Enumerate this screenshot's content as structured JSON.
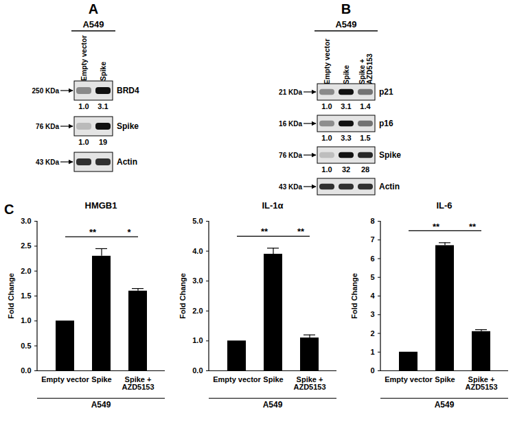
{
  "blots": [
    {
      "label": "A",
      "group": "A549",
      "lanes": [
        "Empty vector",
        "Spike"
      ],
      "rows": [
        {
          "size": "250 KDa",
          "protein": "BRD4",
          "quant": [
            "1.0",
            "3.1"
          ]
        },
        {
          "size": "76 KDa",
          "protein": "Spike",
          "quant": [
            "1.0",
            "19"
          ]
        },
        {
          "size": "43 KDa",
          "protein": "Actin"
        }
      ]
    },
    {
      "label": "B",
      "group": "A549",
      "lanes": [
        "Empty vector",
        "Spike",
        "Spike + AZD5153"
      ],
      "rows": [
        {
          "size": "21 KDa",
          "protein": "p21",
          "quant": [
            "1.0",
            "3.1",
            "1.4"
          ]
        },
        {
          "size": "16 KDa",
          "protein": "p16",
          "quant": [
            "1.0",
            "3.3",
            "1.5"
          ]
        },
        {
          "size": "76 KDa",
          "protein": "Spike",
          "quant": [
            "1.0",
            "32",
            "28"
          ]
        },
        {
          "size": "43 KDa",
          "protein": "Actin"
        }
      ]
    }
  ],
  "panel_label": "C",
  "chart_data": [
    {
      "type": "bar",
      "title": "HMGB1",
      "ylabel": "Fold Change",
      "xlabel": "A549",
      "categories": [
        "Empty vector",
        "Spike",
        "Spike + AZD5153"
      ],
      "values": [
        1,
        2.3,
        1.6
      ],
      "errors": [
        null,
        0.15,
        0.05
      ],
      "color": "#000000",
      "ylim": [
        0,
        3
      ],
      "yticks": [
        0,
        0.5,
        1,
        1.5,
        2,
        2.5,
        3
      ],
      "annotations": [
        {
          "between": [
            "Empty vector",
            "Spike"
          ],
          "text": "**"
        },
        {
          "between": [
            "Spike",
            "Spike + AZD5153"
          ],
          "text": "*"
        }
      ]
    },
    {
      "type": "bar",
      "title": "IL-1α",
      "ylabel": "Fold Change",
      "xlabel": "A549",
      "categories": [
        "Empty vector",
        "Spike",
        "Spike + AZD5153"
      ],
      "values": [
        1,
        3.9,
        1.1
      ],
      "errors": [
        null,
        0.2,
        0.1
      ],
      "color": "#000000",
      "ylim": [
        0,
        5
      ],
      "yticks": [
        0,
        1,
        2,
        3,
        4,
        5
      ],
      "annotations": [
        {
          "between": [
            "Empty vector",
            "Spike"
          ],
          "text": "**"
        },
        {
          "between": [
            "Spike",
            "Spike + AZD5153"
          ],
          "text": "**"
        }
      ]
    },
    {
      "type": "bar",
      "title": "IL-6",
      "ylabel": "Fold Change",
      "xlabel": "A549",
      "categories": [
        "Empty vector",
        "Spike",
        "Spike + AZD5153"
      ],
      "values": [
        1,
        6.7,
        2.1
      ],
      "errors": [
        null,
        0.15,
        0.1
      ],
      "color": "#000000",
      "ylim": [
        0,
        8
      ],
      "yticks": [
        0,
        1,
        2,
        3,
        4,
        5,
        6,
        7,
        8
      ],
      "annotations": [
        {
          "between": [
            "Empty vector",
            "Spike"
          ],
          "text": "**"
        },
        {
          "between": [
            "Spike",
            "Spike + AZD5153"
          ],
          "text": "**"
        }
      ]
    }
  ]
}
